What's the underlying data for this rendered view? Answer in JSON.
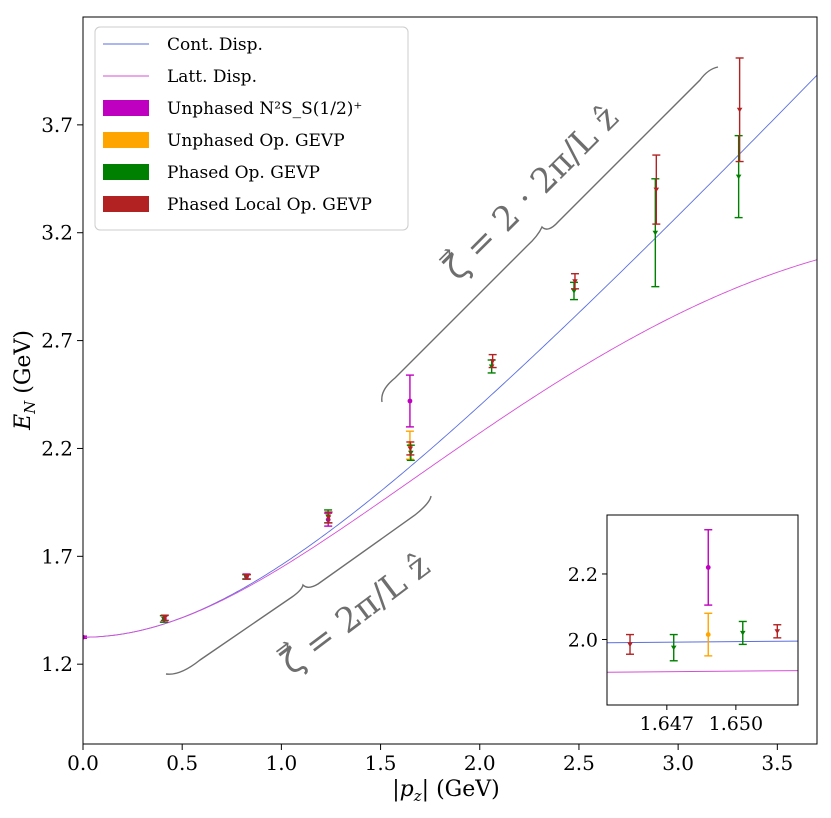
{
  "chart_data": {
    "type": "scatter",
    "xlabel": "|p_z| (GeV)",
    "ylabel": "E_N (GeV)",
    "xlim": [
      0.0,
      3.7
    ],
    "ylim": [
      0.83,
      4.2
    ],
    "xticks": [
      "0.0",
      "0.5",
      "1.0",
      "1.5",
      "2.0",
      "2.5",
      "3.0",
      "3.5"
    ],
    "yticks": [
      "1.2",
      "1.7",
      "2.2",
      "2.7",
      "3.2",
      "3.7"
    ],
    "lines": [
      {
        "name": "Cont. Disp.",
        "color": "#5a6fe0",
        "kind": "continuum",
        "mass": 1.325
      },
      {
        "name": "Latt. Disp.",
        "color": "#d64fd6",
        "kind": "lattice",
        "mass": 1.325
      }
    ],
    "series": [
      {
        "name": "Unphased N^2S_S(1/2)^+",
        "color": "#c000c0",
        "marker": "circle",
        "points": [
          {
            "x": 0.0,
            "y": 1.325,
            "err": 0.005
          },
          {
            "x": 0.41,
            "y": 1.41,
            "err": 0.015
          },
          {
            "x": 0.824,
            "y": 1.606,
            "err": 0.012
          },
          {
            "x": 1.236,
            "y": 1.87,
            "err": 0.03
          },
          {
            "x": 1.648,
            "y": 2.42,
            "err": 0.12
          }
        ]
      },
      {
        "name": "Unphased Op. GEVP",
        "color": "#ffa500",
        "marker": "circle",
        "points": [
          {
            "x": 1.648,
            "y": 2.215,
            "err": 0.065
          }
        ]
      },
      {
        "name": "Phased Op. GEVP",
        "color": "#008000",
        "marker": "triangle-down",
        "points": [
          {
            "x": 0.4075,
            "y": 1.41,
            "err": 0.015
          },
          {
            "x": 0.8225,
            "y": 1.605,
            "err": 0.01
          },
          {
            "x": 1.2355,
            "y": 1.885,
            "err": 0.03
          },
          {
            "x": 1.6525,
            "y": 2.18,
            "err": 0.035
          },
          {
            "x": 2.06,
            "y": 2.58,
            "err": 0.03
          },
          {
            "x": 2.475,
            "y": 2.93,
            "err": 0.04
          },
          {
            "x": 2.885,
            "y": 3.2,
            "err": 0.25
          },
          {
            "x": 3.305,
            "y": 3.46,
            "err": 0.19
          }
        ]
      },
      {
        "name": "Phased Local Op. GEVP",
        "color": "#b22222",
        "marker": "triangle-down",
        "points": [
          {
            "x": 0.4125,
            "y": 1.415,
            "err": 0.012
          },
          {
            "x": 0.8265,
            "y": 1.605,
            "err": 0.01
          },
          {
            "x": 1.2375,
            "y": 1.88,
            "err": 0.025
          },
          {
            "x": 1.65,
            "y": 2.2,
            "err": 0.03
          },
          {
            "x": 2.065,
            "y": 2.605,
            "err": 0.03
          },
          {
            "x": 2.48,
            "y": 2.975,
            "err": 0.035
          },
          {
            "x": 2.89,
            "y": 3.4,
            "err": 0.16
          },
          {
            "x": 3.31,
            "y": 3.77,
            "err": 0.24
          }
        ]
      }
    ],
    "annotations": [
      {
        "text": "ζ = (2π/L) ẑ",
        "label": "ζ⃗ = 2π/L ẑ"
      },
      {
        "text": "ζ = 2·(2π/L) ẑ",
        "label": "ζ⃗ = 2 · 2π/L ẑ"
      }
    ],
    "inset": {
      "xlim": [
        1.6444,
        1.6527
      ],
      "ylim": [
        1.8,
        2.38
      ],
      "xticks": [
        "1.647",
        "1.650"
      ],
      "yticks": [
        "2.0",
        "2.2"
      ],
      "points": [
        {
          "series": "Phased Local Op. GEVP",
          "color": "#b22222",
          "marker": "triangle-down",
          "x": 1.6454,
          "y": 1.985,
          "err": 0.03
        },
        {
          "series": "Phased Op. GEVP",
          "color": "#008000",
          "marker": "triangle-down",
          "x": 1.6473,
          "y": 1.975,
          "err": 0.04
        },
        {
          "series": "Unphased N^2S_S(1/2)^+",
          "color": "#c000c0",
          "marker": "circle",
          "x": 1.6488,
          "y": 2.22,
          "err": 0.115
        },
        {
          "series": "Unphased Op. GEVP",
          "color": "#ffa500",
          "marker": "circle",
          "x": 1.6488,
          "y": 2.015,
          "err": 0.065
        },
        {
          "series": "Phased Op. GEVP",
          "color": "#008000",
          "marker": "triangle-down",
          "x": 1.6503,
          "y": 2.02,
          "err": 0.035
        },
        {
          "series": "Phased Local Op. GEVP",
          "color": "#b22222",
          "marker": "triangle-down",
          "x": 1.6518,
          "y": 2.025,
          "err": 0.02
        }
      ],
      "lines": [
        {
          "name": "Cont. Disp.",
          "color": "#5a6fe0",
          "y0": 1.99,
          "y1": 1.995
        },
        {
          "name": "Latt. Disp.",
          "color": "#d64fd6",
          "y0": 1.9,
          "y1": 1.905
        }
      ]
    }
  },
  "legend": {
    "entries": [
      {
        "label": "Cont. Disp.",
        "kind": "line",
        "color": "#5a6fe0"
      },
      {
        "label": "Latt. Disp.",
        "kind": "line",
        "color": "#d64fd6"
      },
      {
        "label": "Unphased N²S_S(1/2)⁺",
        "kind": "patch",
        "color": "#c000c0"
      },
      {
        "label": "Unphased Op. GEVP",
        "kind": "patch",
        "color": "#ffa500"
      },
      {
        "label": "Phased Op. GEVP",
        "kind": "patch",
        "color": "#008000"
      },
      {
        "label": "Phased Local Op. GEVP",
        "kind": "patch",
        "color": "#b22222"
      }
    ]
  }
}
